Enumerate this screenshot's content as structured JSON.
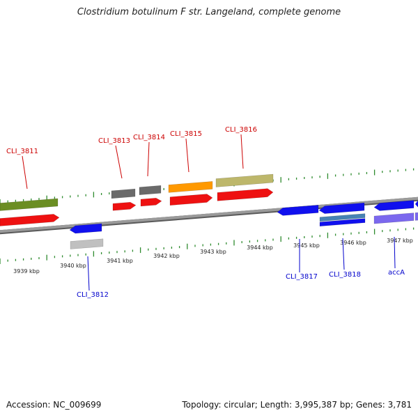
{
  "title": "Clostridium botulinum F str. Langeland, complete genome",
  "footer": {
    "accession": "Accession: NC_009699",
    "summary": "Topology: circular; Length: 3,995,387 bp; Genes: 3,781"
  },
  "colors": {
    "backbone": "#8f8f8f",
    "tick": "#2e8b2e",
    "forward_label": "#cc0000",
    "reverse_label": "#0000cc"
  },
  "scale": {
    "unit": "kbp",
    "tick_labels": [
      {
        "kbp": 3939,
        "label": "3939 kbp"
      },
      {
        "kbp": 3940,
        "label": "3940 kbp"
      },
      {
        "kbp": 3941,
        "label": "3941 kbp"
      },
      {
        "kbp": 3942,
        "label": "3942 kbp"
      },
      {
        "kbp": 3943,
        "label": "3943 kbp"
      },
      {
        "kbp": 3944,
        "label": "3944 kbp"
      },
      {
        "kbp": 3945,
        "label": "3945 kbp"
      },
      {
        "kbp": 3946,
        "label": "3946 kbp"
      },
      {
        "kbp": 3947,
        "label": "3947 kbp"
      }
    ]
  },
  "genes": {
    "forward": [
      {
        "name": "CLI_3811"
      },
      {
        "name": "CLI_3813"
      },
      {
        "name": "CLI_3814"
      },
      {
        "name": "CLI_3815"
      },
      {
        "name": "CLI_3816"
      }
    ],
    "reverse": [
      {
        "name": "CLI_3812"
      },
      {
        "name": "CLI_3817"
      },
      {
        "name": "CLI_3818"
      },
      {
        "name": "accA"
      }
    ]
  }
}
